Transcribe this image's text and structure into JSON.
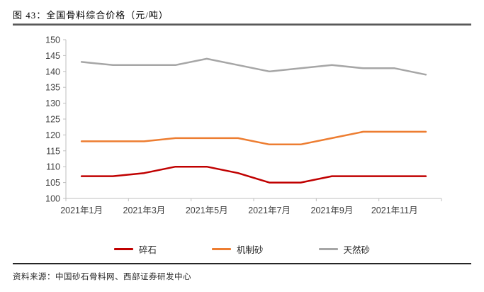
{
  "title": "图 43：全国骨料综合价格（元/吨）",
  "footer": {
    "source": "资料来源：中国砂石骨料网、西部证券研发中心"
  },
  "chart_data": {
    "type": "line",
    "title": "全国骨料综合价格（元/吨）",
    "categories": [
      "2021年1月",
      "2021年2月",
      "2021年3月",
      "2021年4月",
      "2021年5月",
      "2021年6月",
      "2021年7月",
      "2021年8月",
      "2021年9月",
      "2021年10月",
      "2021年11月",
      "2021年12月"
    ],
    "x_tick_labels": [
      "2021年1月",
      "2021年3月",
      "2021年5月",
      "2021年7月",
      "2021年9月",
      "2021年11月"
    ],
    "xlabel": "",
    "ylabel": "",
    "ylim": [
      100,
      150
    ],
    "y_step": 5,
    "grid": false,
    "legend_position": "bottom",
    "axis_color": "#BFBFBF",
    "tick_label_color": "#404040",
    "series": [
      {
        "name": "碎石",
        "color": "#C00000",
        "values": [
          107,
          107,
          108,
          110,
          110,
          108,
          105,
          105,
          107,
          107,
          107,
          107
        ]
      },
      {
        "name": "机制砂",
        "color": "#ED7D31",
        "values": [
          118,
          118,
          118,
          119,
          119,
          119,
          117,
          117,
          119,
          121,
          121,
          121
        ]
      },
      {
        "name": "天然砂",
        "color": "#A6A6A6",
        "values": [
          143,
          142,
          142,
          142,
          144,
          142,
          140,
          141,
          142,
          141,
          141,
          139
        ]
      }
    ]
  }
}
